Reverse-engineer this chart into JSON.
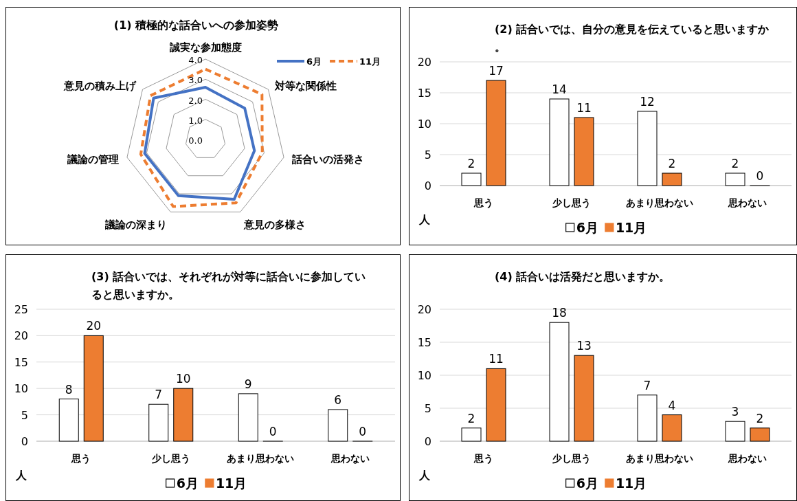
{
  "chart_data": [
    {
      "type": "radar",
      "title": "(1) 積極的な話合いへの参加姿勢",
      "categories": [
        "誠実な参加態度",
        "対等な関係性",
        "話合いの活発さ",
        "意見の多様さ",
        "議論の深まり",
        "議論の管理",
        "意見の積み上げ"
      ],
      "ylim": [
        0,
        4
      ],
      "yticks": [
        {
          "value": 0,
          "label": "0.0"
        },
        {
          "value": 1,
          "label": "1.0"
        },
        {
          "value": 2,
          "label": "2.0"
        },
        {
          "value": 3,
          "label": "3.0"
        },
        {
          "value": 4,
          "label": "4.0"
        }
      ],
      "legend": "top right",
      "marker": "none",
      "series": [
        {
          "name": "6月",
          "color": "#4472c4",
          "line_style": "solid",
          "values": [
            2.6,
            2.5,
            2.5,
            3.3,
            3.1,
            3.1,
            3.3
          ]
        },
        {
          "name": "11月",
          "color": "#ed7d31",
          "line_style": "dashed",
          "values": [
            3.5,
            3.6,
            2.9,
            3.5,
            3.7,
            3.3,
            3.5
          ]
        }
      ]
    },
    {
      "type": "bar",
      "title": "(2) 話合いでは、自分の意見を伝えていると思いますか。",
      "ylabel": "人",
      "categories": [
        "思う",
        "少し思う",
        "あまり思わない",
        "思わない"
      ],
      "ylim": [
        0,
        20
      ],
      "yticks": [
        0,
        5,
        10,
        15,
        20
      ],
      "grid": "y",
      "legend": "bottom",
      "data_labels": true,
      "series": [
        {
          "name": "6月",
          "color": "#ffffff",
          "values": [
            2,
            14,
            12,
            2
          ]
        },
        {
          "name": "11月",
          "color": "#ed7d31",
          "values": [
            17,
            11,
            2,
            0
          ]
        }
      ]
    },
    {
      "type": "bar",
      "title": "(3) 話合いでは、それぞれが対等に話合いに参加していると思いますか。",
      "ylabel": "人",
      "categories": [
        "思う",
        "少し思う",
        "あまり思わない",
        "思わない"
      ],
      "ylim": [
        0,
        25
      ],
      "yticks": [
        0,
        5,
        10,
        15,
        20,
        25
      ],
      "grid": "y",
      "legend": "bottom",
      "data_labels": true,
      "series": [
        {
          "name": "6月",
          "color": "#ffffff",
          "values": [
            8,
            7,
            9,
            6
          ]
        },
        {
          "name": "11月",
          "color": "#ed7d31",
          "values": [
            20,
            10,
            0,
            0
          ]
        }
      ]
    },
    {
      "type": "bar",
      "title": "(4) 話合いは活発だと思いますか。",
      "ylabel": "人",
      "categories": [
        "思う",
        "少し思う",
        "あまり思わない",
        "思わない"
      ],
      "ylim": [
        0,
        20
      ],
      "yticks": [
        0,
        5,
        10,
        15,
        20
      ],
      "grid": "y",
      "legend": "bottom",
      "data_labels": true,
      "series": [
        {
          "name": "6月",
          "color": "#ffffff",
          "values": [
            2,
            18,
            7,
            3
          ]
        },
        {
          "name": "11月",
          "color": "#ed7d31",
          "values": [
            11,
            13,
            4,
            2
          ]
        }
      ]
    }
  ]
}
